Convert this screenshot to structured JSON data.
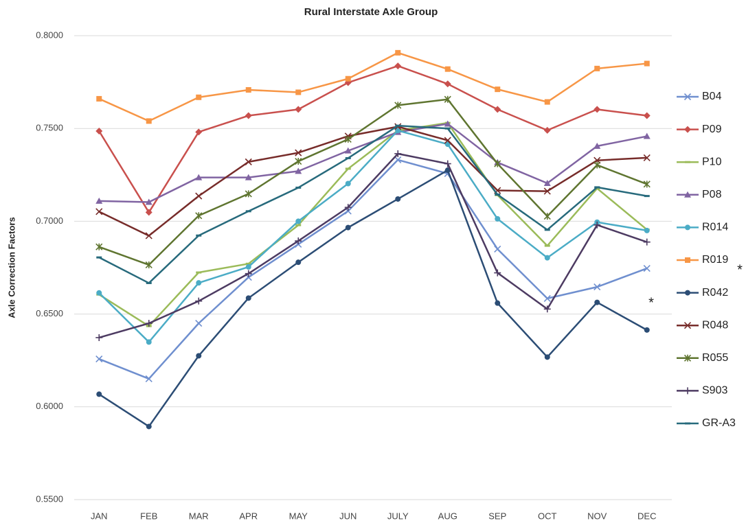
{
  "chart_data": {
    "type": "line",
    "title": "Rural Interstate Axle Group",
    "y_label": "Axle Correction Factors",
    "categories": [
      "JAN",
      "FEB",
      "MAR",
      "APR",
      "MAY",
      "JUN",
      "JULY",
      "AUG",
      "SEP",
      "OCT",
      "NOV",
      "DEC"
    ],
    "ylim": [
      0.55,
      0.8
    ],
    "yticks": [
      {
        "value": 0.55,
        "label": "0.5500"
      },
      {
        "value": 0.6,
        "label": "0.6000"
      },
      {
        "value": 0.65,
        "label": "0.6500"
      },
      {
        "value": 0.7,
        "label": "0.7000"
      },
      {
        "value": 0.75,
        "label": "0.7500"
      },
      {
        "value": 0.8,
        "label": "0.8000"
      }
    ],
    "grid": true,
    "legend": "right",
    "annotations": [
      "*",
      "*"
    ],
    "series": [
      {
        "name": "B04",
        "color": "#6f8fcf",
        "marker": "x",
        "values": [
          0.6258,
          0.6151,
          0.645,
          0.6698,
          0.6876,
          0.7055,
          0.7331,
          0.7257,
          0.685,
          0.6584,
          0.6646,
          0.6746
        ]
      },
      {
        "name": "P09",
        "color": "#c9504d",
        "marker": "diamond",
        "values": [
          0.7486,
          0.7048,
          0.7481,
          0.7569,
          0.7603,
          0.7747,
          0.7837,
          0.774,
          0.7603,
          0.749,
          0.7603,
          0.7569
        ]
      },
      {
        "name": "P10",
        "color": "#9bbb59",
        "marker": "dash",
        "values": [
          0.6605,
          0.6435,
          0.6724,
          0.6771,
          0.6979,
          0.7283,
          0.7489,
          0.753,
          0.7141,
          0.6868,
          0.7177,
          0.6955
        ]
      },
      {
        "name": "P08",
        "color": "#8064a2",
        "marker": "triangle",
        "values": [
          0.7109,
          0.7103,
          0.7236,
          0.7236,
          0.727,
          0.738,
          0.748,
          0.7525,
          0.7317,
          0.7205,
          0.7405,
          0.7458
        ]
      },
      {
        "name": "R014",
        "color": "#4bacc6",
        "marker": "circle",
        "values": [
          0.6614,
          0.6349,
          0.6668,
          0.6754,
          0.7,
          0.7203,
          0.7489,
          0.7415,
          0.7013,
          0.6803,
          0.6995,
          0.695
        ]
      },
      {
        "name": "R019",
        "color": "#f79646",
        "marker": "square",
        "values": [
          0.766,
          0.754,
          0.7668,
          0.7708,
          0.7695,
          0.7768,
          0.7908,
          0.782,
          0.7711,
          0.7643,
          0.7823,
          0.785
        ]
      },
      {
        "name": "R042",
        "color": "#2c4d75",
        "marker": "circle",
        "values": [
          0.6068,
          0.5894,
          0.6275,
          0.6586,
          0.6779,
          0.6966,
          0.712,
          0.7275,
          0.6559,
          0.6268,
          0.6563,
          0.6414
        ]
      },
      {
        "name": "R048",
        "color": "#772c2a",
        "marker": "x",
        "values": [
          0.7052,
          0.6922,
          0.7136,
          0.732,
          0.7369,
          0.7459,
          0.751,
          0.7436,
          0.7166,
          0.7162,
          0.7328,
          0.7342
        ]
      },
      {
        "name": "R055",
        "color": "#5f7530",
        "marker": "star",
        "values": [
          0.6862,
          0.6765,
          0.703,
          0.7148,
          0.7323,
          0.7442,
          0.7625,
          0.7657,
          0.731,
          0.7027,
          0.7303,
          0.72
        ]
      },
      {
        "name": "S903",
        "color": "#4d3b62",
        "marker": "plus",
        "values": [
          0.6373,
          0.645,
          0.657,
          0.6718,
          0.6894,
          0.7075,
          0.7364,
          0.731,
          0.6722,
          0.6527,
          0.698,
          0.6888
        ]
      },
      {
        "name": "GR-A3",
        "color": "#276a7c",
        "marker": "dash",
        "values": [
          0.6805,
          0.6667,
          0.6923,
          0.7054,
          0.7181,
          0.734,
          0.7515,
          0.75,
          0.7144,
          0.6954,
          0.7183,
          0.7136
        ]
      }
    ]
  }
}
